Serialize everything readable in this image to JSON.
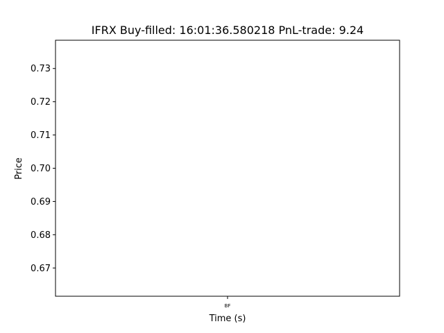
{
  "chart_data": {
    "type": "line",
    "title": "IFRX  Buy-filled:  16:01:36.580218  PnL-trade:  9.24",
    "xlabel": "Time (s)",
    "ylabel": "Price",
    "x_ticks": [
      "BF"
    ],
    "y_ticks": [
      0.67,
      0.68,
      0.69,
      0.7,
      0.71,
      0.72,
      0.73
    ],
    "y_tick_labels": [
      "0.67",
      "0.68",
      "0.69",
      "0.70",
      "0.71",
      "0.72",
      "0.73"
    ],
    "ylim": [
      0.6615,
      0.7385
    ],
    "series": [],
    "grid": false
  }
}
